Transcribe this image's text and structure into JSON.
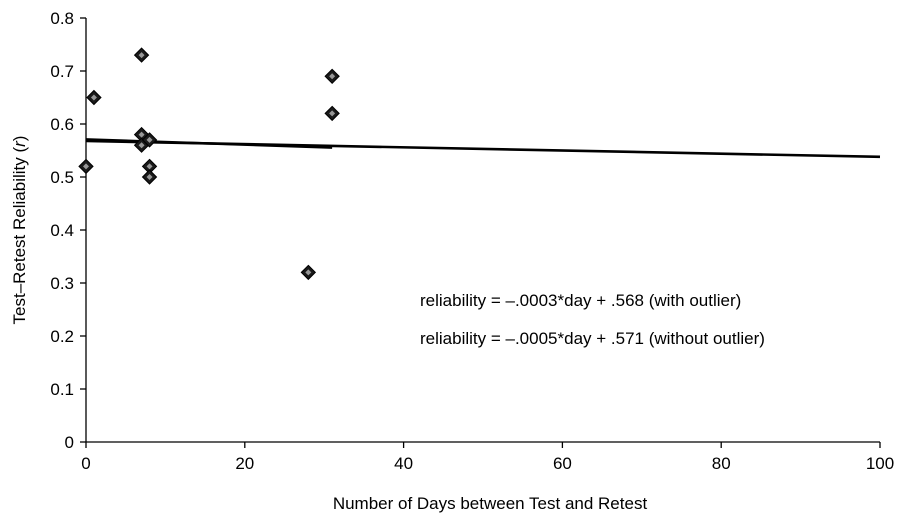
{
  "chart_data": {
    "type": "scatter",
    "title": "",
    "xlabel": "Number of Days between Test and Retest",
    "ylabel_prefix": "Test–Retest Reliability (",
    "ylabel_var": "r",
    "ylabel_suffix": ")",
    "xlim": [
      0,
      100
    ],
    "ylim": [
      0,
      0.8
    ],
    "xticks": [
      0,
      20,
      40,
      60,
      80,
      100
    ],
    "yticks": [
      0,
      0.1,
      0.2,
      0.3,
      0.4,
      0.5,
      0.6,
      0.7,
      0.8
    ],
    "xtick_labels": [
      "0",
      "20",
      "40",
      "60",
      "80",
      "100"
    ],
    "ytick_labels": [
      "0",
      "0.1",
      "0.2",
      "0.3",
      "0.4",
      "0.5",
      "0.6",
      "0.7",
      "0.8"
    ],
    "grid": false,
    "points": [
      {
        "x": 0,
        "y": 0.52
      },
      {
        "x": 1,
        "y": 0.65
      },
      {
        "x": 7,
        "y": 0.73
      },
      {
        "x": 7,
        "y": 0.58
      },
      {
        "x": 7,
        "y": 0.56
      },
      {
        "x": 8,
        "y": 0.57
      },
      {
        "x": 8,
        "y": 0.52
      },
      {
        "x": 8,
        "y": 0.5
      },
      {
        "x": 28,
        "y": 0.32
      },
      {
        "x": 31,
        "y": 0.69
      },
      {
        "x": 31,
        "y": 0.62
      }
    ],
    "trendlines": [
      {
        "slope": -0.0003,
        "intercept": 0.568,
        "x_range": [
          0,
          100
        ]
      },
      {
        "slope": -0.0005,
        "intercept": 0.571,
        "x_range": [
          0,
          31
        ]
      }
    ],
    "annotations": [
      "reliability = –.0003*day + .568  (with outlier)",
      "reliability = –.0005*day + .571   (without outlier)"
    ]
  }
}
